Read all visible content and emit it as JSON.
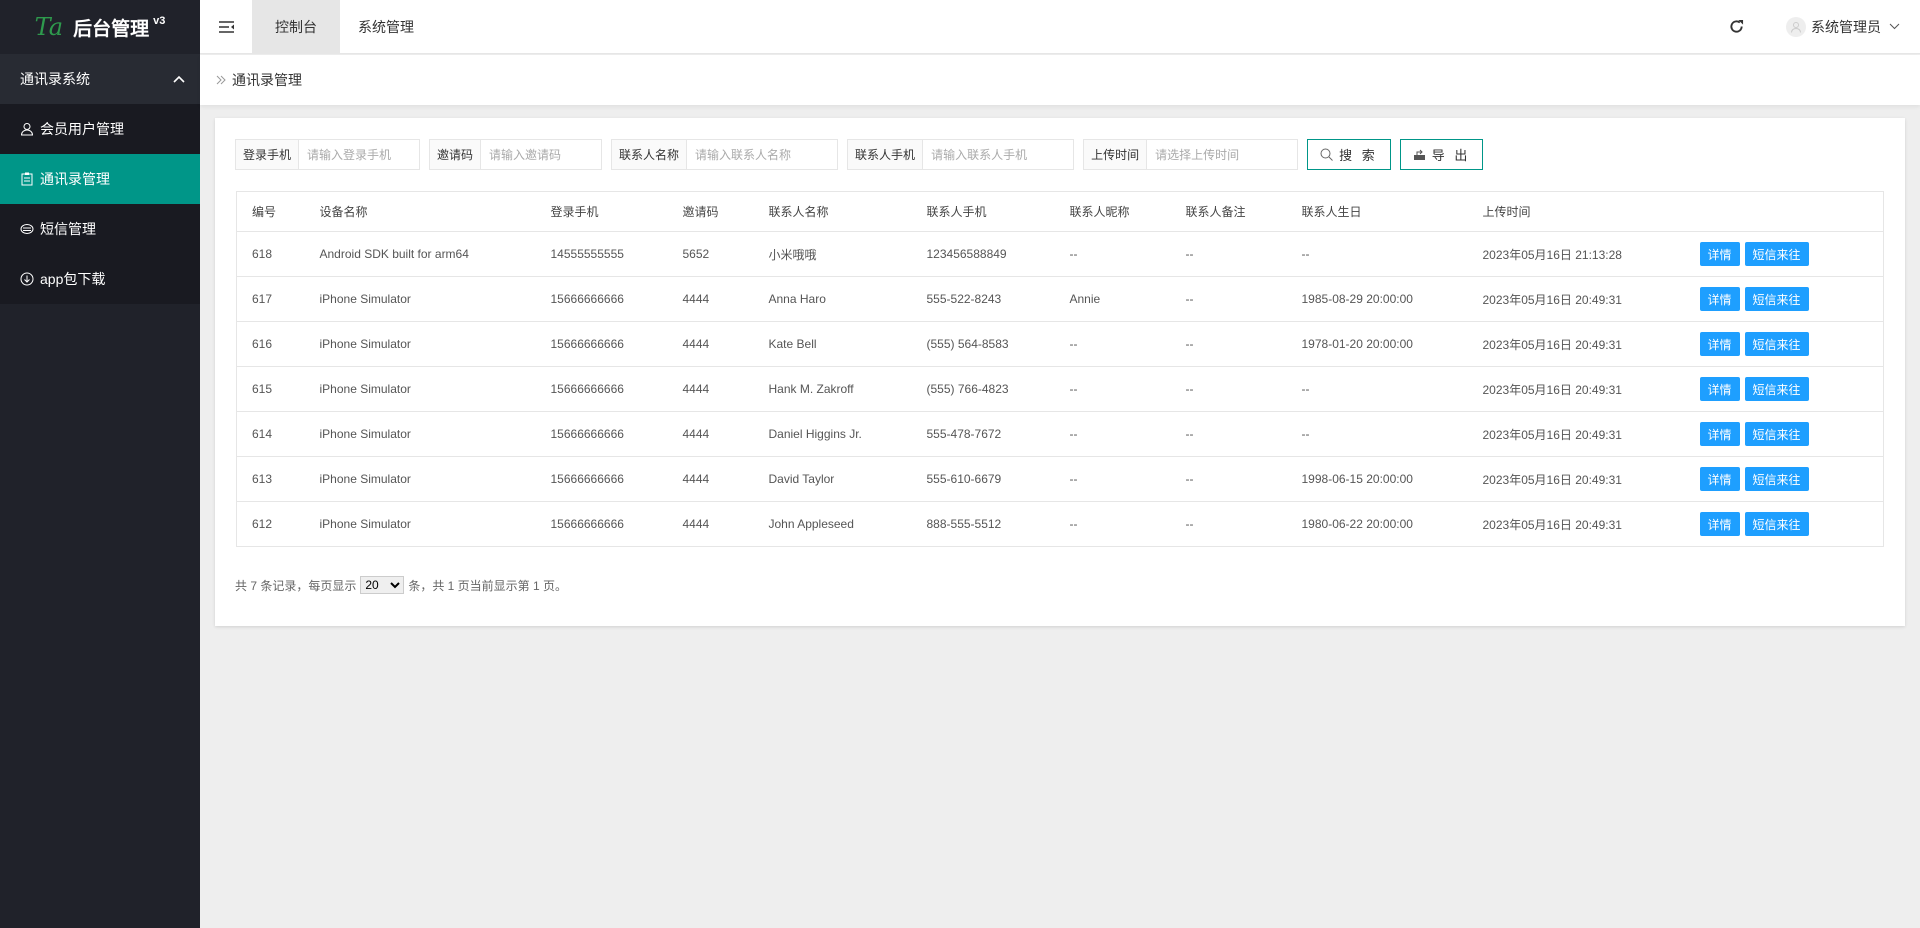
{
  "brand": {
    "title": "后台管理",
    "version": "v3",
    "logo_text": "Ta"
  },
  "sidebar": {
    "group": "通讯录系统",
    "items": [
      {
        "label": "会员用户管理",
        "icon": "user-icon",
        "active": false
      },
      {
        "label": "通讯录管理",
        "icon": "contacts-icon",
        "active": true
      },
      {
        "label": "短信管理",
        "icon": "message-icon",
        "active": false
      },
      {
        "label": "app包下载",
        "icon": "download-icon",
        "active": false
      }
    ]
  },
  "header": {
    "tabs": [
      {
        "label": "控制台",
        "active": true
      },
      {
        "label": "系统管理",
        "active": false
      }
    ],
    "user": "系统管理员"
  },
  "breadcrumb": "通讯录管理",
  "filters": [
    {
      "label": "登录手机",
      "placeholder": "请输入登录手机"
    },
    {
      "label": "邀请码",
      "placeholder": "请输入邀请码"
    },
    {
      "label": "联系人名称",
      "placeholder": "请输入联系人名称"
    },
    {
      "label": "联系人手机",
      "placeholder": "请输入联系人手机"
    },
    {
      "label": "上传时间",
      "placeholder": "请选择上传时间"
    }
  ],
  "buttons": {
    "search": "搜 索",
    "export": "导 出",
    "detail": "详情",
    "sms": "短信来往"
  },
  "table": {
    "columns": [
      "编号",
      "设备名称",
      "登录手机",
      "邀请码",
      "联系人名称",
      "联系人手机",
      "联系人昵称",
      "联系人备注",
      "联系人生日",
      "上传时间",
      ""
    ],
    "rows": [
      [
        "618",
        "Android SDK built for arm64",
        "14555555555",
        "5652",
        "小米哦哦",
        "123456588849",
        "--",
        "--",
        "--",
        "2023年05月16日 21:13:28"
      ],
      [
        "617",
        "iPhone Simulator",
        "15666666666",
        "4444",
        "Anna Haro",
        "555-522-8243",
        "Annie",
        "--",
        "1985-08-29 20:00:00",
        "2023年05月16日 20:49:31"
      ],
      [
        "616",
        "iPhone Simulator",
        "15666666666",
        "4444",
        "Kate Bell",
        "(555) 564-8583",
        "--",
        "--",
        "1978-01-20 20:00:00",
        "2023年05月16日 20:49:31"
      ],
      [
        "615",
        "iPhone Simulator",
        "15666666666",
        "4444",
        "Hank M. Zakroff",
        "(555) 766-4823",
        "--",
        "--",
        "--",
        "2023年05月16日 20:49:31"
      ],
      [
        "614",
        "iPhone Simulator",
        "15666666666",
        "4444",
        "Daniel Higgins Jr.",
        "555-478-7672",
        "--",
        "--",
        "--",
        "2023年05月16日 20:49:31"
      ],
      [
        "613",
        "iPhone Simulator",
        "15666666666",
        "4444",
        "David Taylor",
        "555-610-6679",
        "--",
        "--",
        "1998-06-15 20:00:00",
        "2023年05月16日 20:49:31"
      ],
      [
        "612",
        "iPhone Simulator",
        "15666666666",
        "4444",
        "John Appleseed",
        "888-555-5512",
        "--",
        "--",
        "1980-06-22 20:00:00",
        "2023年05月16日 20:49:31"
      ]
    ]
  },
  "pager": {
    "prefix": "共 7 条记录，每页显示",
    "page_size": "20",
    "suffix": "条，共 1 页当前显示第 1 页。"
  },
  "colors": {
    "sidebar": "#20222a",
    "active": "#009688",
    "primary": "#1e9fff"
  }
}
